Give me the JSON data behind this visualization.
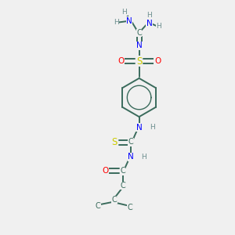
{
  "background_color": "#f0f0f0",
  "atom_colors": {
    "C": "#3a6b5c",
    "N": "#0000ff",
    "O": "#ff0000",
    "S": "#cccc00",
    "H": "#6b8e8e"
  },
  "bond_color": "#3a6b5c",
  "figsize": [
    3.0,
    3.0
  ],
  "dpi": 100,
  "xlim": [
    0,
    10
  ],
  "ylim": [
    0,
    10
  ]
}
